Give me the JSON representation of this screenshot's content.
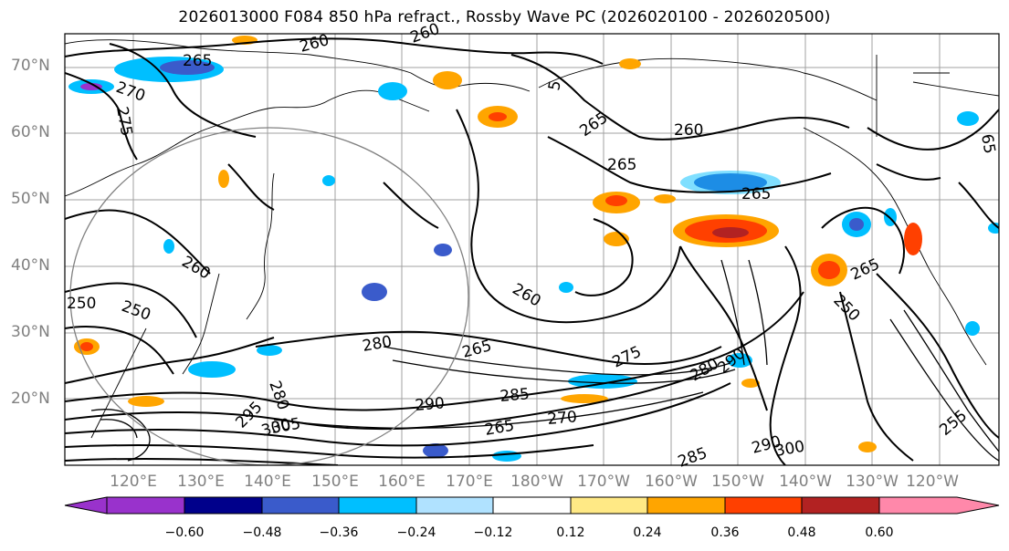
{
  "title": "2026013000 F084 850 hPa refract., Rossby Wave PC (2026020100 - 2026020500)",
  "map": {
    "lat_labels": [
      "70°N",
      "60°N",
      "50°N",
      "40°N",
      "30°N",
      "20°N"
    ],
    "lon_labels": [
      "120°E",
      "130°E",
      "140°E",
      "150°E",
      "160°E",
      "170°E",
      "180°W",
      "170°W",
      "160°W",
      "150°W",
      "140°W",
      "130°W",
      "120°W"
    ],
    "contour_labels": [
      "260",
      "265",
      "270",
      "275",
      "260",
      "260",
      "250",
      "250",
      "280",
      "280",
      "285",
      "290",
      "295",
      "300",
      "305",
      "260",
      "265",
      "265",
      "270",
      "275",
      "280",
      "290",
      "285",
      "255",
      "250",
      "265",
      "265",
      "260",
      "265",
      "290",
      "300",
      "5",
      "65",
      "265"
    ],
    "label_color": "#808080"
  },
  "colorbar": {
    "ticks": [
      "−0.60",
      "−0.48",
      "−0.36",
      "−0.24",
      "−0.12",
      "0.12",
      "0.24",
      "0.36",
      "0.48",
      "0.60"
    ],
    "colors": [
      "#9932CC",
      "#00008B",
      "#3A5BCB",
      "#00BFFF",
      "#B0E2FF",
      "#FFFFFF",
      "#FFE985",
      "#FFA500",
      "#FF4000",
      "#B22222",
      "#FF88AA"
    ]
  }
}
